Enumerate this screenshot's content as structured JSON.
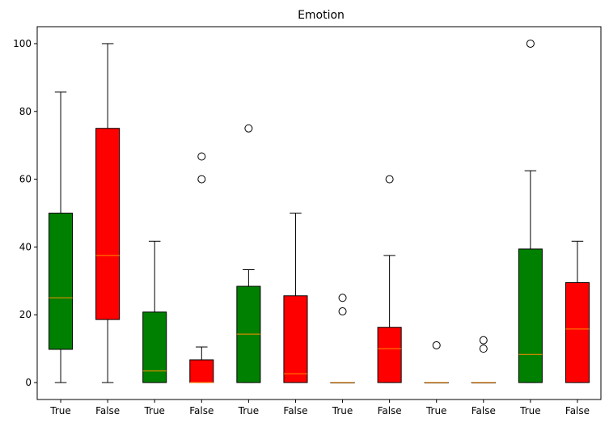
{
  "chart_data": {
    "type": "box",
    "title": "Emotion",
    "xlabel": "",
    "ylabel": "",
    "ylim": [
      -5,
      105
    ],
    "yticks": [
      0,
      20,
      40,
      60,
      80,
      100
    ],
    "grid": false,
    "colors": {
      "True": "#008000",
      "False": "#ff0000",
      "median": "#ff8c00",
      "edge": "#000000"
    },
    "categories": [
      "True",
      "False",
      "True",
      "False",
      "True",
      "False",
      "True",
      "False",
      "True",
      "False",
      "True",
      "False"
    ],
    "boxes": [
      {
        "label": "True",
        "whisker_low": 0,
        "q1": 9.8,
        "median": 25,
        "q3": 50,
        "whisker_high": 85.7,
        "outliers": []
      },
      {
        "label": "False",
        "whisker_low": 0,
        "q1": 18.6,
        "median": 37.5,
        "q3": 75,
        "whisker_high": 100,
        "outliers": []
      },
      {
        "label": "True",
        "whisker_low": 0,
        "q1": 0,
        "median": 3.4,
        "q3": 20.8,
        "whisker_high": 41.7,
        "outliers": []
      },
      {
        "label": "False",
        "whisker_low": 0,
        "q1": 0,
        "median": 0,
        "q3": 6.7,
        "whisker_high": 10.5,
        "outliers": [
          60,
          66.7
        ]
      },
      {
        "label": "True",
        "whisker_low": 0,
        "q1": 0,
        "median": 14.3,
        "q3": 28.4,
        "whisker_high": 33.3,
        "outliers": [
          75
        ]
      },
      {
        "label": "False",
        "whisker_low": 0,
        "q1": 0,
        "median": 2.6,
        "q3": 25.6,
        "whisker_high": 50,
        "outliers": []
      },
      {
        "label": "True",
        "whisker_low": 0,
        "q1": 0,
        "median": 0,
        "q3": 0,
        "whisker_high": 0,
        "outliers": [
          21,
          25
        ]
      },
      {
        "label": "False",
        "whisker_low": 0,
        "q1": 0,
        "median": 10,
        "q3": 16.3,
        "whisker_high": 37.5,
        "outliers": [
          60
        ]
      },
      {
        "label": "True",
        "whisker_low": 0,
        "q1": 0,
        "median": 0,
        "q3": 0,
        "whisker_high": 0,
        "outliers": [
          11
        ]
      },
      {
        "label": "False",
        "whisker_low": 0,
        "q1": 0,
        "median": 0,
        "q3": 0,
        "whisker_high": 0,
        "outliers": [
          10,
          12.5
        ]
      },
      {
        "label": "True",
        "whisker_low": 0,
        "q1": 0,
        "median": 8.3,
        "q3": 39.4,
        "whisker_high": 62.5,
        "outliers": [
          100
        ]
      },
      {
        "label": "False",
        "whisker_low": 0,
        "q1": 0,
        "median": 15.8,
        "q3": 29.5,
        "whisker_high": 41.7,
        "outliers": []
      }
    ]
  }
}
